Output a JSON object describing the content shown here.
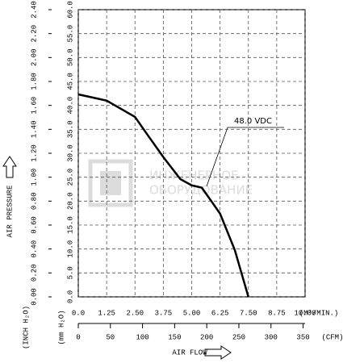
{
  "chart_data": {
    "type": "line",
    "x": [
      0,
      1.25,
      2.5,
      3.0,
      3.75,
      4.5,
      5.0,
      5.45,
      6.25,
      6.9,
      7.5
    ],
    "series": [
      {
        "name": "48.0 VDC",
        "color": "#000000",
        "values": [
          42.3,
          41,
          37.6,
          34.2,
          29.2,
          24.6,
          23.3,
          22.8,
          17.4,
          9.8,
          0
        ]
      }
    ],
    "xlim": [
      0,
      10
    ],
    "ylim": [
      0,
      60
    ],
    "xticks": [
      {
        "value": 0,
        "label": "0.0"
      },
      1.25,
      {
        "value": 2.5,
        "label": "2.50"
      },
      3.75,
      {
        "value": 5,
        "label": "5.00"
      },
      6.25,
      {
        "value": 7.5,
        "label": "7.50"
      },
      8.75,
      {
        "value": 10,
        "label": "10.00"
      }
    ],
    "yticks": [
      {
        "value": 0,
        "label": "0.0"
      },
      {
        "value": 5,
        "label": "5.0"
      },
      {
        "value": 10,
        "label": "10.0"
      },
      {
        "value": 15,
        "label": "15.0"
      },
      {
        "value": 20,
        "label": "20.0"
      },
      {
        "value": 25,
        "label": "25.0"
      },
      {
        "value": 30,
        "label": "30.0"
      },
      {
        "value": 35,
        "label": "35.0"
      },
      {
        "value": 40,
        "label": "40.0"
      },
      {
        "value": 45,
        "label": "45.0"
      },
      {
        "value": 50,
        "label": "50.0"
      },
      {
        "value": 55,
        "label": "55.0"
      },
      {
        "value": 60,
        "label": "60.0"
      }
    ],
    "y2lim": [
      0,
      2.4
    ],
    "y2ticks": [
      {
        "value": 0,
        "label": "0.00"
      },
      {
        "value": 0.2,
        "label": "0.20"
      },
      {
        "value": 0.4,
        "label": "0.40"
      },
      {
        "value": 0.6,
        "label": "0.60"
      },
      {
        "value": 0.8,
        "label": "0.80"
      },
      {
        "value": 1.0,
        "label": "1.00"
      },
      {
        "value": 1.2,
        "label": "1.20"
      },
      {
        "value": 1.4,
        "label": "1.40"
      },
      {
        "value": 1.6,
        "label": "1.60"
      },
      {
        "value": 1.8,
        "label": "1.80"
      },
      {
        "value": 2.0,
        "label": "2.00"
      },
      {
        "value": 2.2,
        "label": "2.20"
      },
      {
        "value": 2.4,
        "label": "2.40"
      }
    ],
    "x2lim": [
      0,
      353.1
    ],
    "x2ticks": [
      0,
      50,
      100,
      150,
      200,
      250,
      300,
      350
    ],
    "x_unit": "(M³/MIN.)",
    "x2_unit": "(CFM)",
    "y_unit": "(mm H₂O)",
    "y2_unit": "(INCH H₂O)",
    "y_title": "AIR PRESSURE",
    "x_title": "AIR FLOW",
    "watermark": [
      "ИНЖЕНЕРНОЕ",
      "ОБОРУДОВАНИЕ"
    ],
    "grid": true
  }
}
